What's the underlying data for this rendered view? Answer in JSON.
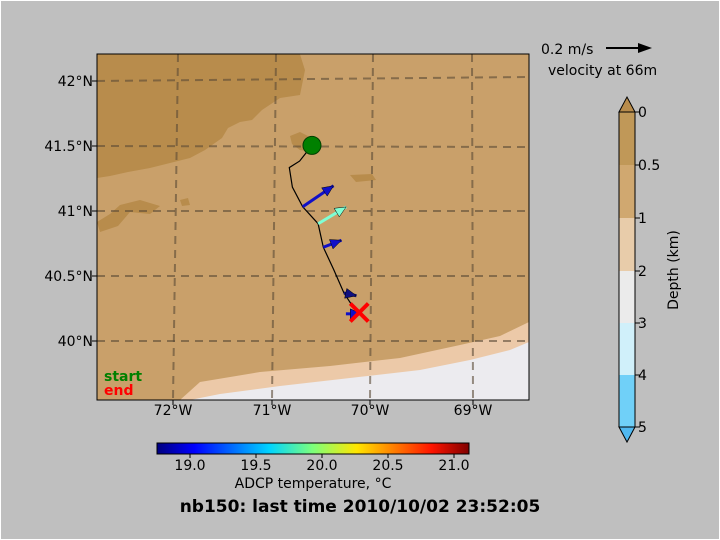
{
  "title": "nb150: last time 2010/10/02 23:52:05",
  "map": {
    "lon_ticks": [
      "72°W",
      "71°W",
      "70°W",
      "69°W"
    ],
    "lat_ticks": [
      "42°N",
      "41.5°N",
      "41°N",
      "40.5°N",
      "40°N"
    ],
    "legend": {
      "start": "start",
      "end": "end"
    },
    "start_position": {
      "lon": -70.66,
      "lat": 41.5
    },
    "end_position": {
      "lon": -70.2,
      "lat": 40.22
    },
    "track_label": "",
    "velocity_vectors": [
      {
        "lon": -70.75,
        "lat": 41.03,
        "dlon": 0.22,
        "dlat": 0.15,
        "color": "#1010c8"
      },
      {
        "lon": -70.6,
        "lat": 40.9,
        "dlon": 0.2,
        "dlat": 0.12,
        "color": "#7fffd4"
      },
      {
        "lon": -70.55,
        "lat": 40.72,
        "dlon": 0.13,
        "dlat": 0.05,
        "color": "#1010c8"
      },
      {
        "lon": -70.35,
        "lat": 40.37,
        "dlon": 0.09,
        "dlat": -0.02,
        "color": "#101080"
      },
      {
        "lon": -70.33,
        "lat": 40.21,
        "dlon": 0.11,
        "dlat": 0.0,
        "color": "#1010c8"
      }
    ]
  },
  "velocity_key": {
    "label": "0.2 m/s",
    "sublabel": "velocity at 66m"
  },
  "depth_colorbar": {
    "title": "Depth (km)",
    "ticks": [
      "0",
      "0.5",
      "1",
      "2",
      "3",
      "4",
      "5"
    ],
    "colors": [
      "#c09858",
      "#d0a870",
      "#e8ccaa",
      "#ebebeb",
      "#d0f0fa",
      "#70d0f8"
    ]
  },
  "temp_colorbar": {
    "label": "ADCP temperature, °C",
    "ticks": [
      "19.0",
      "19.5",
      "20.0",
      "20.5",
      "21.0"
    ],
    "range": [
      18.75,
      21.12
    ]
  },
  "chart_data": {
    "type": "map",
    "title": "nb150: last time 2010/10/02 23:52:05",
    "xlim": [
      -72.75,
      -68.55
    ],
    "ylim": [
      39.55,
      42.2
    ],
    "track": [
      {
        "lon": -70.66,
        "lat": 41.5
      },
      {
        "lon": -70.78,
        "lat": 41.38
      },
      {
        "lon": -70.88,
        "lat": 41.33
      },
      {
        "lon": -70.85,
        "lat": 41.18
      },
      {
        "lon": -70.75,
        "lat": 41.03
      },
      {
        "lon": -70.6,
        "lat": 40.9
      },
      {
        "lon": -70.55,
        "lat": 40.72
      },
      {
        "lon": -70.45,
        "lat": 40.55
      },
      {
        "lon": -70.35,
        "lat": 40.37
      },
      {
        "lon": -70.25,
        "lat": 40.25
      },
      {
        "lon": -70.2,
        "lat": 40.22
      }
    ]
  }
}
